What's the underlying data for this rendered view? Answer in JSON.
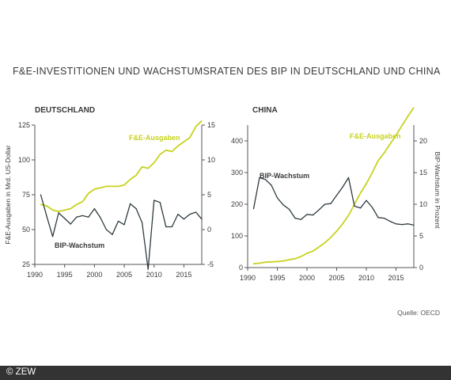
{
  "title": "F&E-INVESTITIONEN UND WACHSTUMSRATEN DES BIP IN DEUTSCHLAND UND CHINA",
  "source": "Quelle: OECD",
  "footer": "© ZEW",
  "colors": {
    "rd": "#c8d21e",
    "gdp": "#2e3a3f",
    "axis": "#555555",
    "text": "#3a3a3a"
  },
  "chart_data": [
    {
      "type": "line",
      "panel": "DEUTSCHLAND",
      "ylabel": "F&E-Ausgaben in Mrd. US-Dollar",
      "y2label": "",
      "xlim": [
        1990,
        2018
      ],
      "xticks": [
        1990,
        1995,
        2000,
        2005,
        2010,
        2015
      ],
      "ylim": [
        25,
        125
      ],
      "yticks": [
        25,
        50,
        75,
        100,
        125
      ],
      "y2lim": [
        -5,
        15
      ],
      "y2ticks": [
        -5,
        0,
        5,
        10,
        15
      ],
      "series": [
        {
          "name": "F&E-Ausgaben",
          "axis": "left",
          "color": "#c8d21e",
          "x": [
            1991,
            1992,
            1993,
            1994,
            1995,
            1996,
            1997,
            1998,
            1999,
            2000,
            2001,
            2002,
            2003,
            2004,
            2005,
            2006,
            2007,
            2008,
            2009,
            2010,
            2011,
            2012,
            2013,
            2014,
            2015,
            2016,
            2017,
            2018
          ],
          "values": [
            68,
            67,
            64,
            63,
            64,
            65,
            68,
            70,
            76,
            79,
            80,
            81,
            81,
            81,
            82,
            86,
            89,
            95,
            94,
            98,
            104,
            107,
            106,
            110,
            113,
            116,
            124,
            128
          ]
        },
        {
          "name": "BIP-Wachstum",
          "axis": "right",
          "color": "#2e3a3f",
          "x": [
            1991,
            1992,
            1993,
            1994,
            1995,
            1996,
            1997,
            1998,
            1999,
            2000,
            2001,
            2002,
            2003,
            2004,
            2005,
            2006,
            2007,
            2008,
            2009,
            2010,
            2011,
            2012,
            2013,
            2014,
            2015,
            2016,
            2017,
            2018
          ],
          "values": [
            5.0,
            1.9,
            -1.0,
            2.4,
            1.6,
            0.8,
            1.8,
            2.0,
            1.8,
            3.0,
            1.7,
            0.0,
            -0.7,
            1.2,
            0.7,
            3.7,
            3.0,
            1.0,
            -5.7,
            4.2,
            3.9,
            0.4,
            0.4,
            2.2,
            1.5,
            2.2,
            2.5,
            1.5
          ]
        }
      ]
    },
    {
      "type": "line",
      "panel": "CHINA",
      "ylabel": "",
      "y2label": "BIP-Wachstum in Prozent",
      "xlim": [
        1990,
        2018
      ],
      "xticks": [
        1990,
        1995,
        2000,
        2005,
        2010,
        2015
      ],
      "ylim": [
        0,
        450
      ],
      "yticks": [
        0,
        100,
        200,
        300,
        400
      ],
      "y2lim": [
        0,
        22.5
      ],
      "y2ticks": [
        0,
        5,
        10,
        15,
        20
      ],
      "series": [
        {
          "name": "F&E-Ausgaben",
          "axis": "left",
          "color": "#c8d21e",
          "x": [
            1991,
            1992,
            1993,
            1994,
            1995,
            1996,
            1997,
            1998,
            1999,
            2000,
            2001,
            2002,
            2003,
            2004,
            2005,
            2006,
            2007,
            2008,
            2009,
            2010,
            2011,
            2012,
            2013,
            2014,
            2015,
            2016,
            2017,
            2018
          ],
          "values": [
            12,
            14,
            17,
            18,
            19,
            21,
            25,
            28,
            35,
            45,
            52,
            65,
            78,
            95,
            115,
            138,
            165,
            200,
            235,
            265,
            300,
            338,
            362,
            390,
            418,
            448,
            478,
            505
          ]
        },
        {
          "name": "BIP-Wachstum",
          "axis": "right",
          "color": "#2e3a3f",
          "x": [
            1991,
            1992,
            1993,
            1994,
            1995,
            1996,
            1997,
            1998,
            1999,
            2000,
            2001,
            2002,
            2003,
            2004,
            2005,
            2006,
            2007,
            2008,
            2009,
            2010,
            2011,
            2012,
            2013,
            2014,
            2015,
            2016,
            2017,
            2018
          ],
          "values": [
            9.3,
            14.2,
            13.9,
            13.0,
            11.0,
            9.9,
            9.2,
            7.8,
            7.6,
            8.4,
            8.3,
            9.1,
            10.0,
            10.1,
            11.4,
            12.7,
            14.2,
            9.7,
            9.4,
            10.6,
            9.5,
            7.9,
            7.8,
            7.3,
            6.9,
            6.8,
            6.9,
            6.7
          ]
        }
      ]
    }
  ]
}
